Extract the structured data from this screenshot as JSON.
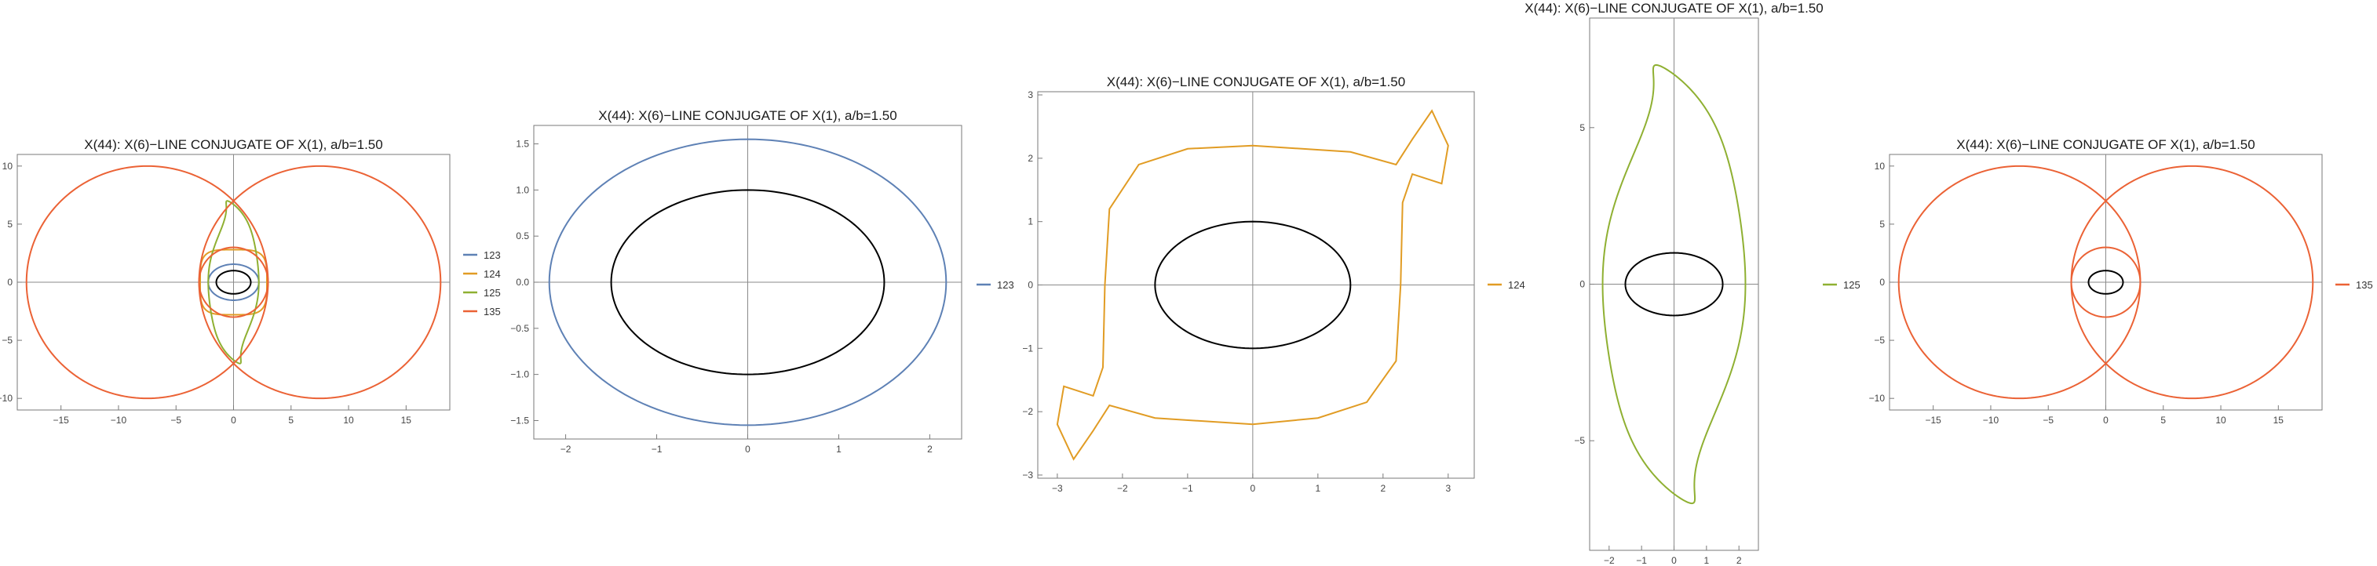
{
  "panels": [
    {
      "title": "X(44): X(6)−LINE CONJUGATE OF X(1), a/b=1.50",
      "xticks": [
        "−15",
        "−10",
        "−5",
        "0",
        "5",
        "10",
        "15"
      ],
      "yticks": [
        "10",
        "5",
        "0",
        "−5",
        "−10"
      ],
      "legend": [
        "123",
        "124",
        "125",
        "135"
      ]
    },
    {
      "title": "X(44): X(6)−LINE CONJUGATE OF X(1), a/b=1.50",
      "xticks": [
        "−2",
        "−1",
        "0",
        "1",
        "2"
      ],
      "yticks": [
        "1.5",
        "1.0",
        "0.5",
        "0.0",
        "−0.5",
        "−1.0",
        "−1.5"
      ],
      "legend": [
        "123"
      ]
    },
    {
      "title": "X(44): X(6)−LINE CONJUGATE OF X(1), a/b=1.50",
      "xticks": [
        "−3",
        "−2",
        "−1",
        "0",
        "1",
        "2",
        "3"
      ],
      "yticks": [
        "3",
        "2",
        "1",
        "0",
        "−1",
        "−2",
        "−3"
      ],
      "legend": [
        "124"
      ]
    },
    {
      "title": "X(44): X(6)−LINE CONJUGATE OF X(1), a/b=1.50",
      "xticks": [
        "−2",
        "−1",
        "0",
        "1",
        "2"
      ],
      "yticks": [
        "5",
        "0",
        "−5"
      ],
      "legend": [
        "125"
      ]
    },
    {
      "title": "X(44): X(6)−LINE CONJUGATE OF X(1), a/b=1.50",
      "xticks": [
        "−15",
        "−10",
        "−5",
        "0",
        "5",
        "10",
        "15"
      ],
      "yticks": [
        "10",
        "5",
        "0",
        "−5",
        "−10"
      ],
      "legend": [
        "135"
      ]
    }
  ],
  "chart_data": [
    {
      "type": "line",
      "title": "X(44): X(6)−LINE CONJUGATE OF X(1), a/b=1.50",
      "xlim": [
        -18.8,
        18.8
      ],
      "ylim": [
        -11,
        11
      ],
      "grid": false,
      "legend_position": "right",
      "series": [
        {
          "name": "123",
          "color": "#5e81b5",
          "shape": "ellipse",
          "a": 2.2,
          "b": 1.55
        },
        {
          "name": "124",
          "color": "#e19c24",
          "shape": "quartic",
          "a": 2.9,
          "b": 2.8
        },
        {
          "name": "125",
          "color": "#8fb032",
          "shape": "double-loop",
          "a": 2.2,
          "b": 7.0
        },
        {
          "name": "135",
          "color": "#eb6235",
          "shape": "two-circles-inner-loop",
          "outer_x": 18.0,
          "outer_y": 10.0,
          "inner_r": 3.0
        },
        {
          "name": "",
          "color": "#000000",
          "shape": "ellipse",
          "a": 1.5,
          "b": 1.0
        }
      ]
    },
    {
      "type": "line",
      "title": "X(44): X(6)−LINE CONJUGATE OF X(1), a/b=1.50",
      "xlim": [
        -2.35,
        2.35
      ],
      "ylim": [
        -1.7,
        1.7
      ],
      "grid": false,
      "legend_position": "right",
      "series": [
        {
          "name": "123",
          "color": "#5e81b5",
          "shape": "ellipse",
          "a": 2.18,
          "b": 1.55
        },
        {
          "name": "",
          "color": "#000000",
          "shape": "ellipse",
          "a": 1.5,
          "b": 1.0
        }
      ]
    },
    {
      "type": "line",
      "title": "X(44): X(6)−LINE CONJUGATE OF X(1), a/b=1.50",
      "xlim": [
        -3.3,
        3.4
      ],
      "ylim": [
        -3.05,
        3.05
      ],
      "grid": false,
      "legend_position": "right",
      "series": [
        {
          "name": "124",
          "color": "#e19c24",
          "shape": "s-curve",
          "points": [
            [
              0,
              2.2
            ],
            [
              -1,
              2.15
            ],
            [
              -1.75,
              1.9
            ],
            [
              -2.2,
              1.2
            ],
            [
              -2.27,
              0
            ],
            [
              -2.3,
              -1.3
            ],
            [
              -2.45,
              -1.75
            ],
            [
              -2.9,
              -1.6
            ],
            [
              -3.0,
              -2.2
            ],
            [
              -2.75,
              -2.75
            ],
            [
              -2.45,
              -2.3
            ],
            [
              -2.2,
              -1.9
            ],
            [
              -1.5,
              -2.1
            ],
            [
              0,
              -2.2
            ],
            [
              1.0,
              -2.1
            ],
            [
              1.75,
              -1.85
            ],
            [
              2.2,
              -1.2
            ],
            [
              2.27,
              0
            ],
            [
              2.3,
              1.3
            ],
            [
              2.45,
              1.75
            ],
            [
              2.9,
              1.6
            ],
            [
              3.0,
              2.2
            ],
            [
              2.75,
              2.75
            ],
            [
              2.45,
              2.3
            ],
            [
              2.2,
              1.9
            ],
            [
              1.5,
              2.1
            ],
            [
              0,
              2.2
            ]
          ]
        },
        {
          "name": "",
          "color": "#000000",
          "shape": "ellipse",
          "a": 1.5,
          "b": 1.0
        }
      ]
    },
    {
      "type": "line",
      "title": "X(44): X(6)−LINE CONJUGATE OF X(1), a/b=1.50",
      "xlim": [
        -2.6,
        2.6
      ],
      "ylim": [
        -8.5,
        8.5
      ],
      "grid": false,
      "legend_position": "left",
      "series": [
        {
          "name": "125",
          "color": "#8fb032",
          "shape": "double-loop",
          "a": 2.2,
          "b": 7.0
        },
        {
          "name": "",
          "color": "#000000",
          "shape": "ellipse",
          "a": 1.5,
          "b": 1.0
        }
      ]
    },
    {
      "type": "line",
      "title": "X(44): X(6)−LINE CONJUGATE OF X(1), a/b=1.50",
      "xlim": [
        -18.8,
        18.8
      ],
      "ylim": [
        -11,
        11
      ],
      "grid": false,
      "legend_position": "right",
      "series": [
        {
          "name": "135",
          "color": "#eb6235",
          "shape": "two-circles-inner-loop",
          "outer_x": 18.0,
          "outer_y": 10.0,
          "inner_r": 3.0
        },
        {
          "name": "",
          "color": "#000000",
          "shape": "ellipse",
          "a": 1.5,
          "b": 1.0
        }
      ]
    }
  ]
}
